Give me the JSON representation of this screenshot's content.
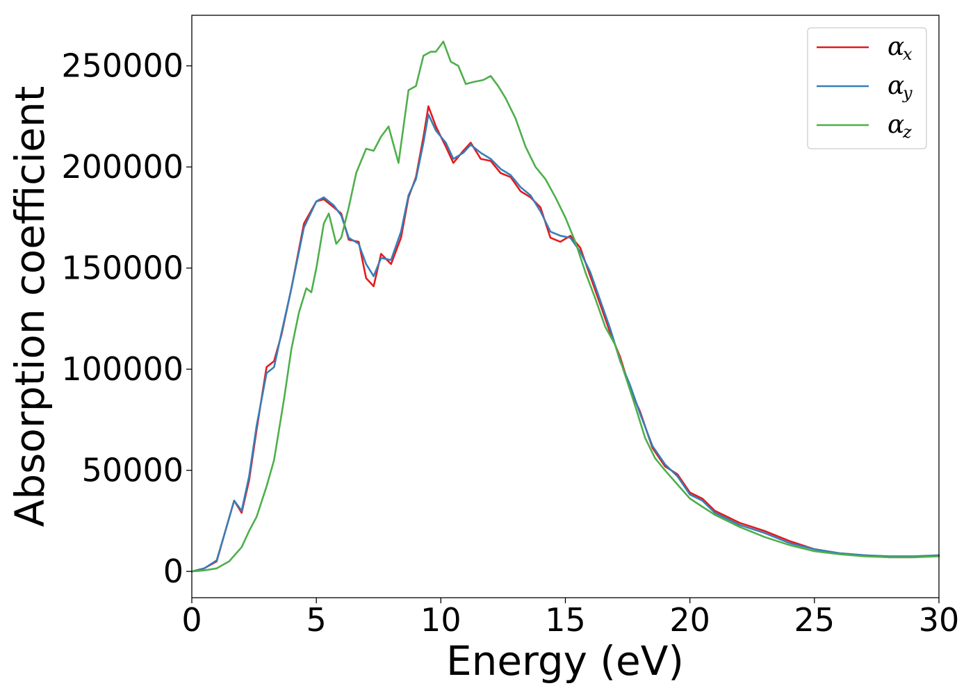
{
  "chart_data": {
    "type": "line",
    "title": "",
    "xlabel": "Energy (eV)",
    "ylabel": "Absorption coefficient",
    "xlim": [
      0,
      30
    ],
    "ylim": [
      -13000,
      275000
    ],
    "xticks": [
      0,
      5,
      10,
      15,
      20,
      25,
      30
    ],
    "xtick_labels": [
      "0",
      "5",
      "10",
      "15",
      "20",
      "25",
      "30"
    ],
    "yticks": [
      0,
      50000,
      100000,
      150000,
      200000,
      250000
    ],
    "ytick_labels": [
      "0",
      "50000",
      "100000",
      "150000",
      "200000",
      "250000"
    ],
    "grid": false,
    "legend_position": "top-right",
    "series": [
      {
        "name": "α_x",
        "label_main": "α",
        "label_sub": "x",
        "color": "#e41a1c",
        "x": [
          0,
          0.5,
          1.0,
          1.3,
          1.7,
          2.0,
          2.3,
          2.6,
          3.0,
          3.3,
          3.6,
          4.0,
          4.5,
          5.0,
          5.3,
          5.7,
          6.0,
          6.3,
          6.7,
          7.0,
          7.3,
          7.6,
          8.0,
          8.4,
          8.7,
          9.0,
          9.3,
          9.5,
          9.8,
          10.2,
          10.5,
          10.9,
          11.2,
          11.6,
          12.0,
          12.4,
          12.8,
          13.2,
          13.6,
          14.0,
          14.4,
          14.8,
          15.2,
          15.6,
          16.0,
          16.4,
          16.8,
          17.2,
          17.6,
          18.0,
          18.5,
          19.0,
          19.5,
          20.0,
          20.5,
          21.0,
          22.0,
          23.0,
          24.0,
          25.0,
          26.0,
          27.0,
          28.0,
          29.0,
          30.0
        ],
        "y": [
          0,
          1500,
          5000,
          18000,
          35000,
          29000,
          45000,
          70000,
          101000,
          104000,
          117000,
          140000,
          172000,
          183000,
          184000,
          180000,
          177000,
          164000,
          163000,
          145000,
          141000,
          157000,
          152000,
          165000,
          185000,
          195000,
          215000,
          230000,
          220000,
          210000,
          202000,
          208000,
          212000,
          204000,
          203000,
          197000,
          195000,
          188000,
          185000,
          180000,
          165000,
          163000,
          166000,
          160000,
          146000,
          132000,
          118000,
          106000,
          90000,
          79000,
          61000,
          52000,
          48000,
          39000,
          36000,
          30000,
          24000,
          20000,
          15000,
          11000,
          9000,
          8000,
          7000,
          7000,
          8000
        ]
      },
      {
        "name": "α_y",
        "label_main": "α",
        "label_sub": "y",
        "color": "#377eb8",
        "x": [
          0,
          0.5,
          1.0,
          1.3,
          1.7,
          2.0,
          2.3,
          2.6,
          3.0,
          3.3,
          3.6,
          4.0,
          4.5,
          5.0,
          5.3,
          5.7,
          6.0,
          6.3,
          6.7,
          7.0,
          7.3,
          7.6,
          8.0,
          8.4,
          8.7,
          9.0,
          9.3,
          9.5,
          9.8,
          10.2,
          10.5,
          10.9,
          11.2,
          11.6,
          12.0,
          12.4,
          12.8,
          13.2,
          13.6,
          14.0,
          14.4,
          14.8,
          15.2,
          15.6,
          16.0,
          16.4,
          16.8,
          17.2,
          17.6,
          18.0,
          18.5,
          19.0,
          19.5,
          20.0,
          20.5,
          21.0,
          22.0,
          23.0,
          24.0,
          25.0,
          26.0,
          27.0,
          28.0,
          29.0,
          30.0
        ],
        "y": [
          0,
          1500,
          5500,
          18000,
          35000,
          30000,
          47000,
          72000,
          98000,
          101000,
          118000,
          140000,
          170000,
          183000,
          185000,
          181000,
          176000,
          165000,
          162000,
          152000,
          146000,
          155000,
          154000,
          168000,
          186000,
          194000,
          212000,
          226000,
          218000,
          212000,
          204000,
          207000,
          211000,
          207000,
          204000,
          199000,
          196000,
          190000,
          186000,
          178000,
          168000,
          166000,
          165000,
          158000,
          148000,
          134000,
          120000,
          104000,
          92000,
          78000,
          62000,
          53000,
          47000,
          38000,
          35000,
          29000,
          23000,
          19000,
          14000,
          11000,
          9000,
          8000,
          7500,
          7500,
          8000
        ]
      },
      {
        "name": "α_z",
        "label_main": "α",
        "label_sub": "z",
        "color": "#4daf4a",
        "x": [
          0,
          0.5,
          1.0,
          1.5,
          2.0,
          2.3,
          2.6,
          3.0,
          3.3,
          3.7,
          4.0,
          4.3,
          4.6,
          4.8,
          5.0,
          5.3,
          5.5,
          5.8,
          6.0,
          6.3,
          6.6,
          7.0,
          7.3,
          7.6,
          7.9,
          8.3,
          8.7,
          9.0,
          9.3,
          9.6,
          9.8,
          10.1,
          10.4,
          10.7,
          11.0,
          11.3,
          11.7,
          12.0,
          12.3,
          12.6,
          13.0,
          13.4,
          13.8,
          14.2,
          14.6,
          15.0,
          15.4,
          15.8,
          16.2,
          16.6,
          17.0,
          17.4,
          17.8,
          18.2,
          18.6,
          19.0,
          19.5,
          20.0,
          20.5,
          21.0,
          22.0,
          23.0,
          24.0,
          25.0,
          26.0,
          27.0,
          28.0,
          29.0,
          30.0
        ],
        "y": [
          0,
          500,
          1500,
          5000,
          12000,
          20000,
          27000,
          42000,
          55000,
          85000,
          110000,
          128000,
          140000,
          138000,
          150000,
          172000,
          177000,
          162000,
          165000,
          180000,
          197000,
          209000,
          208000,
          215000,
          220000,
          202000,
          238000,
          240000,
          255000,
          257000,
          257000,
          262000,
          252000,
          250000,
          241000,
          242000,
          243000,
          245000,
          240000,
          234000,
          224000,
          210000,
          200000,
          194000,
          185000,
          175000,
          163000,
          148000,
          135000,
          121000,
          112000,
          97000,
          82000,
          66000,
          56000,
          50000,
          43000,
          36000,
          32000,
          28000,
          22000,
          17000,
          13000,
          10000,
          8500,
          7500,
          7000,
          7000,
          7500
        ]
      }
    ]
  }
}
